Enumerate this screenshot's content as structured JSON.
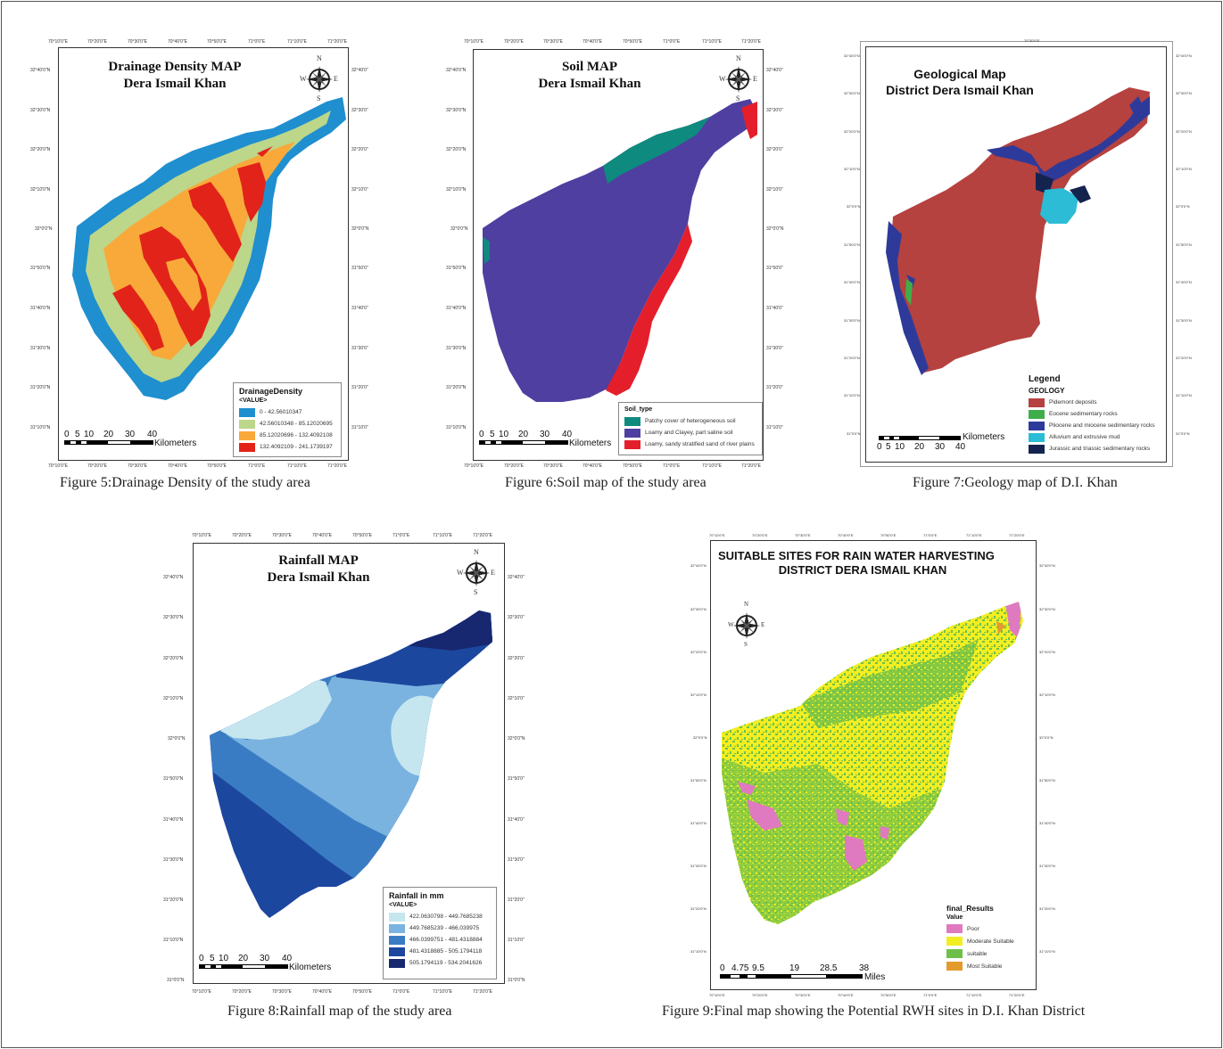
{
  "figures": [
    {
      "id": "fig5",
      "title_line1": "Drainage Density MAP",
      "title_line2": "Dera Ismail Khan",
      "caption": "Figure 5:Drainage Density of the study area",
      "lon_ticks": [
        "70°10'0\"E",
        "70°20'0\"E",
        "70°30'0\"E",
        "70°40'0\"E",
        "70°50'0\"E",
        "71°0'0\"E",
        "71°10'0\"E",
        "71°20'0\"E"
      ],
      "lat_ticks_left": [
        "32°40'0\"N",
        "32°30'0\"N",
        "32°20'0\"N",
        "32°10'0\"N",
        "32°0'0\"N",
        "31°50'0\"N",
        "31°40'0\"N",
        "31°30'0\"N",
        "31°20'0\"N",
        "31°10'0\"N"
      ],
      "lat_ticks_right": [
        "32°40'0\"",
        "32°30'0\"",
        "32°20'0\"",
        "32°10'0\"",
        "32°0'0\"N",
        "31°50'0\"",
        "31°40'0\"",
        "31°30'0\"",
        "31°20'0\"",
        "31°10'0\""
      ],
      "legend": {
        "title": "DrainageDensity",
        "subtitle": "<VALUE>",
        "items": [
          {
            "label": "0 - 42.56010347",
            "color": "#1f8fcf"
          },
          {
            "label": "42.56010348 - 85.12020695",
            "color": "#bcd68a"
          },
          {
            "label": "85.12020696 - 132.4092108",
            "color": "#f8a93a"
          },
          {
            "label": "132.4092109 - 241.1739197",
            "color": "#e2231a"
          }
        ]
      },
      "scale": {
        "labels": [
          "0",
          "5",
          "10",
          "20",
          "30",
          "40"
        ],
        "unit": "Kilometers"
      }
    },
    {
      "id": "fig6",
      "title_line1": "Soil MAP",
      "title_line2": "Dera Ismail Khan",
      "caption": "Figure 6:Soil map of the study area",
      "lon_ticks": [
        "70°10'0\"E",
        "70°20'0\"E",
        "70°30'0\"E",
        "70°40'0\"E",
        "70°50'0\"E",
        "71°0'0\"E",
        "71°10'0\"E",
        "71°20'0\"E"
      ],
      "lat_ticks_left": [
        "32°40'0\"N",
        "32°30'0\"N",
        "32°20'0\"N",
        "32°10'0\"N",
        "32°0'0\"N",
        "31°50'0\"N",
        "31°40'0\"N",
        "31°30'0\"N",
        "31°20'0\"N",
        "31°10'0\"N"
      ],
      "lat_ticks_right": [
        "32°40'0\"",
        "32°30'0\"",
        "32°20'0\"",
        "32°10'0\"",
        "32°0'0\"N",
        "31°50'0\"",
        "31°40'0\"",
        "31°30'0\"",
        "31°20'0\"",
        "31°10'0\""
      ],
      "legend": {
        "title": "Soil_type",
        "items": [
          {
            "label": "Patchy cover of heterogeneous soil",
            "color": "#0f8a7e"
          },
          {
            "label": "Loamy and Clayey, part saline soil",
            "color": "#4f3fa0"
          },
          {
            "label": "Loamy, sandy stratified sand of river plains",
            "color": "#e41e2b"
          }
        ]
      },
      "scale": {
        "labels": [
          "0",
          "5",
          "10",
          "20",
          "30",
          "40"
        ],
        "unit": "Kilometers"
      }
    },
    {
      "id": "fig7",
      "title_line1": "Geological Map",
      "title_line2": "District Dera Ismail Khan",
      "caption": "Figure 7:Geology map of D.I. Khan",
      "top_tick": "70°30'0\"E",
      "lat_ticks_left": [
        "32°40'0\"N",
        "32°30'0\"N",
        "32°20'0\"N",
        "32°10'0\"N",
        "32°0'0\"N",
        "31°50'0\"N",
        "31°40'0\"N",
        "31°30'0\"N",
        "31°20'0\"N",
        "31°10'0\"N",
        "31°0'0\"N"
      ],
      "lat_ticks_right": [
        "32°40'0\"N",
        "32°30'0\"N",
        "32°20'0\"N",
        "32°10'0\"N",
        "32°0'0\"N",
        "31°50'0\"N",
        "31°40'0\"N",
        "31°30'0\"N",
        "31°20'0\"N",
        "31°10'0\"N",
        "31°0'0\"N"
      ],
      "legend": {
        "title": "Legend",
        "subtitle": "GEOLOGY",
        "items": [
          {
            "label": "Pidemont deposits",
            "color": "#b5423f"
          },
          {
            "label": "Eocene sedimentary rocks",
            "color": "#3fae49"
          },
          {
            "label": "Pliocene and miocene sedimentary rocks",
            "color": "#2e3a9a"
          },
          {
            "label": "Alluvium and extrusive mud",
            "color": "#2cbcd6"
          },
          {
            "label": "Jurassic and triassic sedimentary rocks",
            "color": "#14244f"
          }
        ]
      },
      "scale": {
        "labels": [
          "0",
          "5",
          "10",
          "20",
          "30",
          "40"
        ],
        "unit": "Kilometers"
      }
    },
    {
      "id": "fig8",
      "title_line1": "Rainfall MAP",
      "title_line2": "Dera Ismail Khan",
      "caption": "Figure 8:Rainfall map of the study area",
      "lon_ticks": [
        "70°10'0\"E",
        "70°20'0\"E",
        "70°30'0\"E",
        "70°40'0\"E",
        "70°50'0\"E",
        "71°0'0\"E",
        "71°10'0\"E",
        "71°20'0\"E"
      ],
      "lat_ticks_left": [
        "32°40'0\"N",
        "32°30'0\"N",
        "32°20'0\"N",
        "32°10'0\"N",
        "32°0'0\"N",
        "31°50'0\"N",
        "31°40'0\"N",
        "31°30'0\"N",
        "31°20'0\"N",
        "31°10'0\"N",
        "31°0'0\"N"
      ],
      "lat_ticks_right": [
        "32°40'0\"",
        "32°30'0\"",
        "32°20'0\"",
        "32°10'0\"",
        "32°0'0\"N",
        "31°50'0\"",
        "31°40'0\"",
        "31°30'0\"",
        "31°20'0\"",
        "31°10'0\"",
        "31°0'0\"N"
      ],
      "legend": {
        "title": "Rainfall in mm",
        "subtitle": "<VALUE>",
        "items": [
          {
            "label": "422.0630798 - 449.7685238",
            "color": "#c6e6ef"
          },
          {
            "label": "449.7685239 - 466.039975",
            "color": "#7ab3e0"
          },
          {
            "label": "466.0399751 - 481.4318884",
            "color": "#3a7cc4"
          },
          {
            "label": "481.4318885 - 505.1794118",
            "color": "#1c479f"
          },
          {
            "label": "505.1794119 - 534.2041626",
            "color": "#172770"
          }
        ]
      },
      "scale": {
        "labels": [
          "0",
          "5",
          "10",
          "20",
          "30",
          "40"
        ],
        "unit": "Kilometers"
      }
    },
    {
      "id": "fig9",
      "title_line1": "SUITABLE SITES FOR RAIN WATER HARVESTING",
      "title_line2": "DISTRICT DERA ISMAIL KHAN",
      "caption": "Figure 9:Final map showing the Potential RWH sites in D.I. Khan District",
      "lon_ticks": [
        "70°10'0\"E",
        "70°20'0\"E",
        "70°30'0\"E",
        "70°40'0\"E",
        "70°50'0\"E",
        "71°0'0\"E",
        "71°10'0\"E",
        "71°20'0\"E"
      ],
      "lat_ticks_left": [
        "32°40'0\"N",
        "32°30'0\"N",
        "32°20'0\"N",
        "32°10'0\"N",
        "32°0'0\"N",
        "31°50'0\"N",
        "31°40'0\"N",
        "31°30'0\"N",
        "31°20'0\"N",
        "31°10'0\"N"
      ],
      "lat_ticks_right": [
        "32°40'0\"N",
        "32°30'0\"N",
        "32°20'0\"N",
        "32°10'0\"N",
        "32°0'0\"N",
        "31°50'0\"N",
        "31°40'0\"N",
        "31°30'0\"N",
        "31°20'0\"N",
        "31°10'0\"N"
      ],
      "legend": {
        "title": "final_Results",
        "subtitle": "Value",
        "items": [
          {
            "label": "Poor",
            "color": "#e07ac0"
          },
          {
            "label": "Moderate Suitable",
            "color": "#f2ee22"
          },
          {
            "label": "suitable",
            "color": "#6cc04a"
          },
          {
            "label": "Most Suitable",
            "color": "#e39b2c"
          }
        ]
      },
      "scale": {
        "labels": [
          "0",
          "4.75",
          "9.5",
          "19",
          "28.5",
          "38"
        ],
        "unit": "Miles"
      }
    }
  ],
  "compass": {
    "n": "N",
    "s": "S",
    "e": "E",
    "w": "W"
  }
}
